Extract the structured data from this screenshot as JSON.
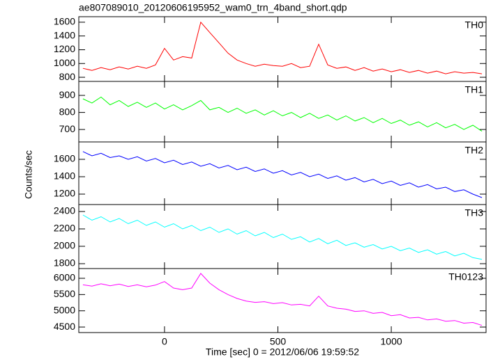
{
  "title": "ae807089010_20120606195952_wam0_trn_4band_short.qdp",
  "xlabel": "Time [sec] 0 = 2012/06/06 19:59:52",
  "ylabel": "Counts/sec",
  "xlim": [
    -378,
    1418
  ],
  "xticks": [
    0,
    500,
    1000
  ],
  "x": [
    -360,
    -320,
    -280,
    -240,
    -200,
    -160,
    -120,
    -80,
    -40,
    0,
    40,
    80,
    120,
    160,
    200,
    240,
    280,
    320,
    360,
    400,
    440,
    480,
    520,
    560,
    600,
    640,
    680,
    720,
    760,
    800,
    840,
    880,
    920,
    960,
    1000,
    1040,
    1080,
    1120,
    1160,
    1200,
    1240,
    1280,
    1320,
    1360,
    1400
  ],
  "chart_data": [
    {
      "type": "line",
      "ylim": [
        740,
        1680
      ],
      "yticks": [
        800,
        1000,
        1200,
        1400,
        1600
      ],
      "series": [
        {
          "name": "TH0",
          "color": "#ff0000",
          "values": [
            930,
            900,
            940,
            910,
            950,
            920,
            960,
            930,
            980,
            1220,
            1050,
            1100,
            1080,
            1600,
            1450,
            1300,
            1150,
            1050,
            1000,
            960,
            990,
            970,
            960,
            1000,
            940,
            960,
            1280,
            980,
            930,
            950,
            900,
            940,
            890,
            920,
            880,
            910,
            870,
            900,
            860,
            890,
            850,
            880,
            860,
            870,
            850
          ]
        }
      ]
    },
    {
      "type": "line",
      "ylim": [
        627,
        982
      ],
      "yticks": [
        700,
        800,
        900
      ],
      "series": [
        {
          "name": "TH1",
          "color": "#00ff00",
          "values": [
            880,
            855,
            890,
            845,
            870,
            835,
            860,
            830,
            855,
            820,
            845,
            815,
            840,
            870,
            815,
            830,
            800,
            825,
            795,
            815,
            785,
            810,
            780,
            800,
            770,
            795,
            765,
            785,
            755,
            780,
            750,
            770,
            740,
            765,
            735,
            755,
            725,
            745,
            715,
            740,
            710,
            730,
            700,
            725,
            690
          ]
        }
      ]
    },
    {
      "type": "line",
      "ylim": [
        1080,
        1800
      ],
      "yticks": [
        1200,
        1400,
        1600
      ],
      "series": [
        {
          "name": "TH2",
          "color": "#0000ff",
          "values": [
            1690,
            1640,
            1670,
            1620,
            1640,
            1600,
            1630,
            1580,
            1610,
            1560,
            1590,
            1540,
            1570,
            1520,
            1550,
            1500,
            1530,
            1480,
            1510,
            1460,
            1490,
            1440,
            1470,
            1420,
            1450,
            1400,
            1430,
            1380,
            1410,
            1360,
            1390,
            1340,
            1370,
            1320,
            1350,
            1300,
            1330,
            1280,
            1310,
            1260,
            1280,
            1230,
            1250,
            1200,
            1160
          ]
        }
      ]
    },
    {
      "type": "line",
      "ylim": [
        1744,
        2480
      ],
      "yticks": [
        1800,
        2000,
        2200,
        2400
      ],
      "series": [
        {
          "name": "TH3",
          "color": "#00ffff",
          "values": [
            2360,
            2300,
            2340,
            2280,
            2320,
            2260,
            2300,
            2240,
            2280,
            2220,
            2260,
            2200,
            2240,
            2180,
            2220,
            2160,
            2200,
            2140,
            2180,
            2120,
            2160,
            2100,
            2140,
            2080,
            2110,
            2050,
            2090,
            2030,
            2070,
            2010,
            2040,
            1990,
            2020,
            1970,
            2000,
            1950,
            1980,
            1930,
            1960,
            1910,
            1940,
            1890,
            1920,
            1870,
            1850
          ]
        }
      ]
    },
    {
      "type": "line",
      "ylim": [
        4330,
        6300
      ],
      "yticks": [
        4500,
        5000,
        5500,
        6000
      ],
      "series": [
        {
          "name": "TH0123",
          "color": "#ff00ff",
          "values": [
            5800,
            5760,
            5830,
            5770,
            5820,
            5750,
            5800,
            5740,
            5790,
            5900,
            5700,
            5650,
            5700,
            6150,
            5850,
            5650,
            5500,
            5380,
            5300,
            5260,
            5280,
            5220,
            5250,
            5180,
            5200,
            5150,
            5450,
            5150,
            5080,
            5050,
            4980,
            5000,
            4920,
            4950,
            4850,
            4880,
            4780,
            4800,
            4720,
            4750,
            4680,
            4700,
            4620,
            4640,
            4550
          ]
        }
      ]
    }
  ]
}
